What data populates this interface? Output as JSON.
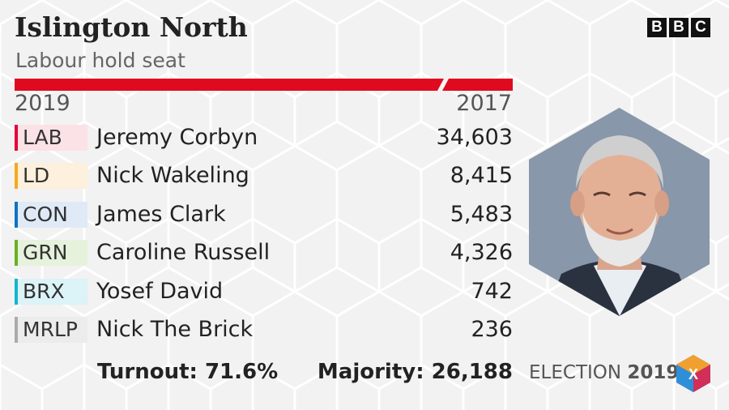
{
  "header": {
    "title": "Islington North",
    "subtitle": "Labour hold seat",
    "brand": [
      "B",
      "B",
      "C"
    ]
  },
  "years": {
    "current": "2019",
    "previous": "2017"
  },
  "colors": {
    "accent": "#e00a1e",
    "LAB": "#e4003b",
    "LD": "#f6a81e",
    "CON": "#0f73c4",
    "GRN": "#6ab023",
    "BRX": "#12b6cf",
    "MRLP": "#aaaaaa"
  },
  "results": [
    {
      "party": "LAB",
      "candidate": "Jeremy Corbyn",
      "votes": "34,603",
      "color": "#e4003b",
      "tint": "#fbe2e6"
    },
    {
      "party": "LD",
      "candidate": "Nick Wakeling",
      "votes": "8,415",
      "color": "#f6a81e",
      "tint": "#fdf0dc"
    },
    {
      "party": "CON",
      "candidate": "James Clark",
      "votes": "5,483",
      "color": "#0f73c4",
      "tint": "#dfeaf6"
    },
    {
      "party": "GRN",
      "candidate": "Caroline Russell",
      "votes": "4,326",
      "color": "#6ab023",
      "tint": "#e6f2dc"
    },
    {
      "party": "BRX",
      "candidate": "Yosef David",
      "votes": "742",
      "color": "#12b6cf",
      "tint": "#dcf3f7"
    },
    {
      "party": "MRLP",
      "candidate": "Nick The Brick",
      "votes": "236",
      "color": "#aaaaaa",
      "tint": "#ececec"
    }
  ],
  "footer": {
    "turnout": "Turnout: 71.6%",
    "majority": "Majority: 26,188",
    "election_label": "ELECTION",
    "election_year": "2019",
    "logo_mark": "X"
  },
  "icons": {
    "portrait": "candidate-portrait-hexagon",
    "logo": "election-cube-logo-icon"
  }
}
